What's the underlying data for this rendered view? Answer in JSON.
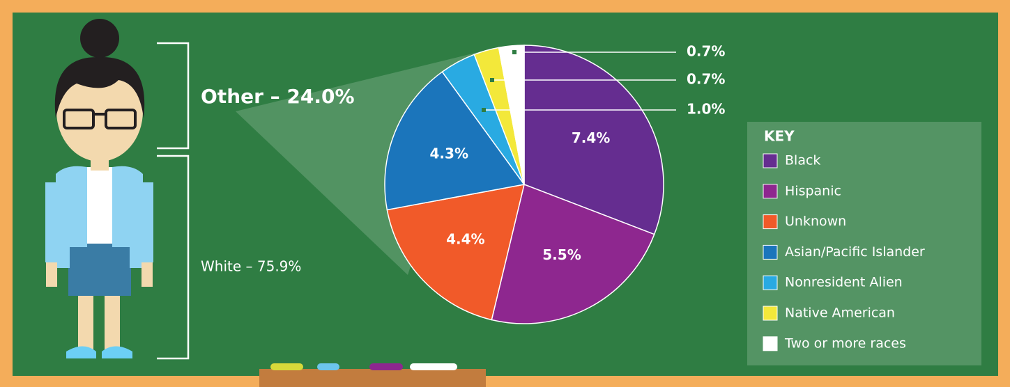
{
  "chart_data": {
    "type": "pie",
    "annotations": [
      "Other – 24.0%",
      "White – 75.9%"
    ],
    "legend_title": "KEY",
    "categories": [
      "Black",
      "Hispanic",
      "Unknown",
      "Asian/Pacific Islander",
      "Nonresident Alien",
      "Native American",
      "Two or more races"
    ],
    "values": [
      7.4,
      5.5,
      4.4,
      4.3,
      1.0,
      0.7,
      0.7
    ],
    "value_labels": [
      "7.4%",
      "5.5%",
      "4.4%",
      "4.3%",
      "1.0%",
      "0.7%",
      "0.7%"
    ],
    "colors": [
      "#652d90",
      "#8e278f",
      "#f15a29",
      "#1b75bb",
      "#29aae2",
      "#f3e83a",
      "#ffffff"
    ]
  }
}
